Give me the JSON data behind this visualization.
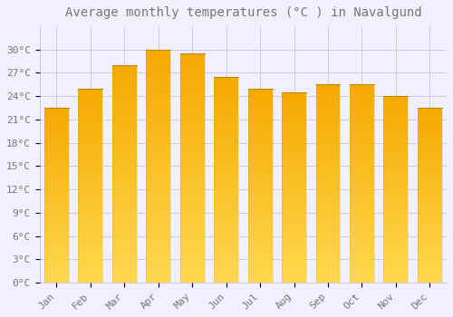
{
  "title": "Average monthly temperatures (°C ) in Navalgund",
  "months": [
    "Jan",
    "Feb",
    "Mar",
    "Apr",
    "May",
    "Jun",
    "Jul",
    "Aug",
    "Sep",
    "Oct",
    "Nov",
    "Dec"
  ],
  "temperatures": [
    22.5,
    25.0,
    28.0,
    30.0,
    29.5,
    26.5,
    25.0,
    24.5,
    25.5,
    25.5,
    24.0,
    22.5
  ],
  "bar_color_bottom": "#FFD84E",
  "bar_color_top": "#F5A800",
  "bar_edge_color": "#B8860B",
  "ylim": [
    0,
    33
  ],
  "yticks": [
    0,
    3,
    6,
    9,
    12,
    15,
    18,
    21,
    24,
    27,
    30
  ],
  "ytick_labels": [
    "0°C",
    "3°C",
    "6°C",
    "9°C",
    "12°C",
    "15°C",
    "18°C",
    "21°C",
    "24°C",
    "27°C",
    "30°C"
  ],
  "background_color": "#F0F0FF",
  "grid_color": "#CCCCDD",
  "title_fontsize": 10,
  "tick_fontsize": 8,
  "font_color": "#777777"
}
